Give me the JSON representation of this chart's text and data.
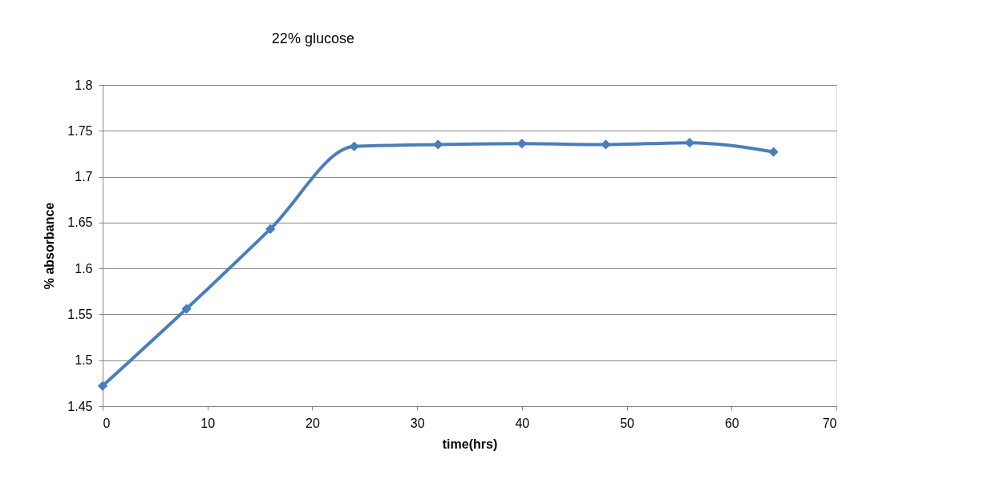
{
  "chart_data": {
    "type": "line",
    "title": "22% glucose",
    "xlabel": "time(hrs)",
    "ylabel": "% absorbance",
    "x": [
      0,
      8,
      16,
      24,
      32,
      40,
      48,
      56,
      64
    ],
    "series": [
      {
        "color": "#4a7ebb",
        "values": [
          1.472,
          1.556,
          1.643,
          1.733,
          1.735,
          1.736,
          1.735,
          1.737,
          1.727
        ]
      }
    ],
    "xlim": [
      0,
      70
    ],
    "xticks": [
      0,
      10,
      20,
      30,
      40,
      50,
      60,
      70
    ],
    "ylim": [
      1.45,
      1.8
    ],
    "yticks": [
      1.45,
      1.5,
      1.55,
      1.6,
      1.65,
      1.7,
      1.75,
      1.8
    ],
    "grid": "y",
    "marker": "diamond",
    "line_style": "solid"
  }
}
